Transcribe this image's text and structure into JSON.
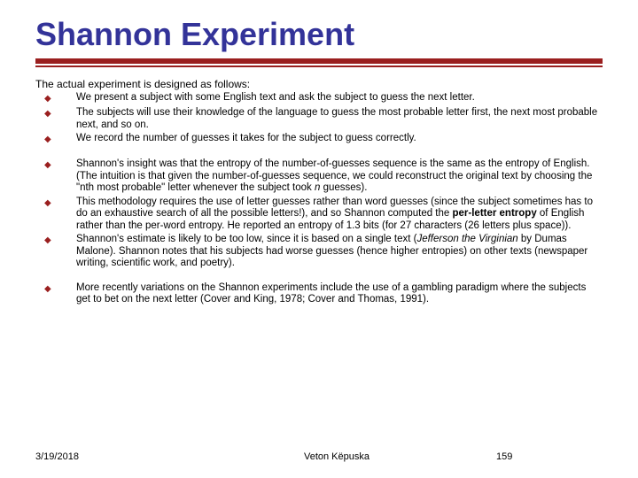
{
  "title": "Shannon Experiment",
  "colors": {
    "title_color": "#333399",
    "rule_color": "#9a1f1f",
    "bullet_color": "#9a1f1f",
    "text_color": "#000000",
    "background": "#ffffff"
  },
  "fontsizes": {
    "title_pt": 36,
    "body_pt": 12,
    "footer_pt": 11
  },
  "intro": "The actual experiment is designed as follows:",
  "group1": [
    "We present a subject with some English text and ask the subject to guess the next letter.",
    "The subjects will use their knowledge of the language to guess the most probable letter first, the next most probable next, and so on.",
    "We record the number of guesses it takes for the subject to guess correctly."
  ],
  "group2": {
    "item0_pre": "Shannon's insight was that the entropy of the number-of-guesses sequence is the same as the entropy of English. (The intuition is that given the number-of-guesses sequence, we could reconstruct the original text by choosing the \"nth most probable\" letter whenever the subject took ",
    "item0_n": "n",
    "item0_post": " guesses).",
    "item1_pre": "This methodology requires the use of letter guesses rather than word guesses (since the subject sometimes has to do an exhaustive search of all the possible letters!), and so Shannon computed the ",
    "item1_bold": "per-letter entropy",
    "item1_post": " of English rather than the per-word entropy. He reported an entropy of 1.3 bits (for 27 characters (26 letters plus space)).",
    "item2_pre": "Shannon's estimate is likely to be too low, since it is based on a single text (",
    "item2_italic": "Jefferson the Virginian",
    "item2_post": " by Dumas Malone). Shannon notes that his subjects had worse guesses (hence higher entropies) on other texts (newspaper writing, scientific work, and poetry)."
  },
  "group3": [
    "More recently variations on the Shannon experiments include the use of a gambling paradigm where the subjects get to bet on the next letter (Cover and King, 1978; Cover and Thomas, 1991)."
  ],
  "footer": {
    "date": "3/19/2018",
    "author": "Veton Këpuska",
    "page": "159"
  },
  "bullet_glyph": "◆"
}
